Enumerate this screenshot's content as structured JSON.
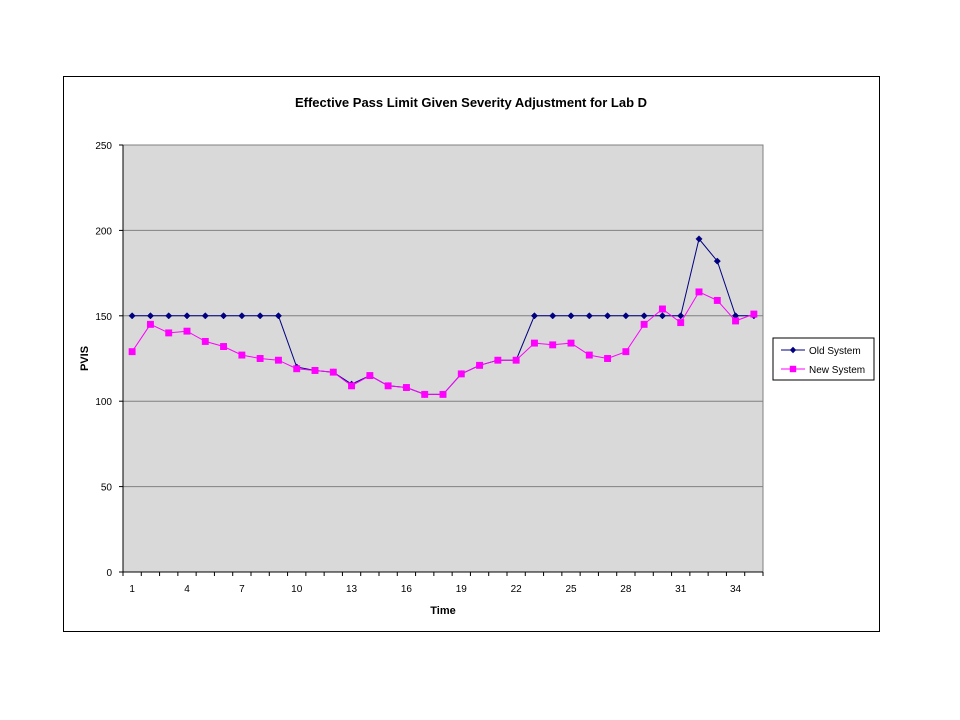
{
  "chart_data": {
    "type": "line",
    "title": "Effective Pass Limit Given Severity Adjustment for Lab D",
    "xlabel": "Time",
    "ylabel": "PVIS",
    "ylim": [
      0,
      250
    ],
    "yticks": [
      0,
      50,
      100,
      150,
      200,
      250
    ],
    "x": [
      1,
      2,
      3,
      4,
      5,
      6,
      7,
      8,
      9,
      10,
      11,
      12,
      13,
      14,
      15,
      16,
      17,
      18,
      19,
      20,
      21,
      22,
      23,
      24,
      25,
      26,
      27,
      28,
      29,
      30,
      31,
      32,
      33,
      34,
      35
    ],
    "xtick_labels": [
      "1",
      "4",
      "7",
      "10",
      "13",
      "16",
      "19",
      "22",
      "25",
      "28",
      "31",
      "34"
    ],
    "grid": true,
    "plot_background": "#d9d9d9",
    "legend_position": "right",
    "series": [
      {
        "name": "Old System",
        "color": "#000080",
        "marker": "diamond",
        "values": [
          150,
          150,
          150,
          150,
          150,
          150,
          150,
          150,
          150,
          120,
          118,
          117,
          110,
          115,
          109,
          108,
          104,
          104,
          116,
          121,
          124,
          124,
          150,
          150,
          150,
          150,
          150,
          150,
          150,
          150,
          150,
          195,
          182,
          150,
          150
        ]
      },
      {
        "name": "New System",
        "color": "#ff00ff",
        "marker": "square",
        "values": [
          129,
          145,
          140,
          141,
          135,
          132,
          127,
          125,
          124,
          119,
          118,
          117,
          109,
          115,
          109,
          108,
          104,
          104,
          116,
          121,
          124,
          124,
          134,
          133,
          134,
          127,
          125,
          129,
          145,
          154,
          146,
          164,
          159,
          147,
          151
        ]
      }
    ]
  }
}
